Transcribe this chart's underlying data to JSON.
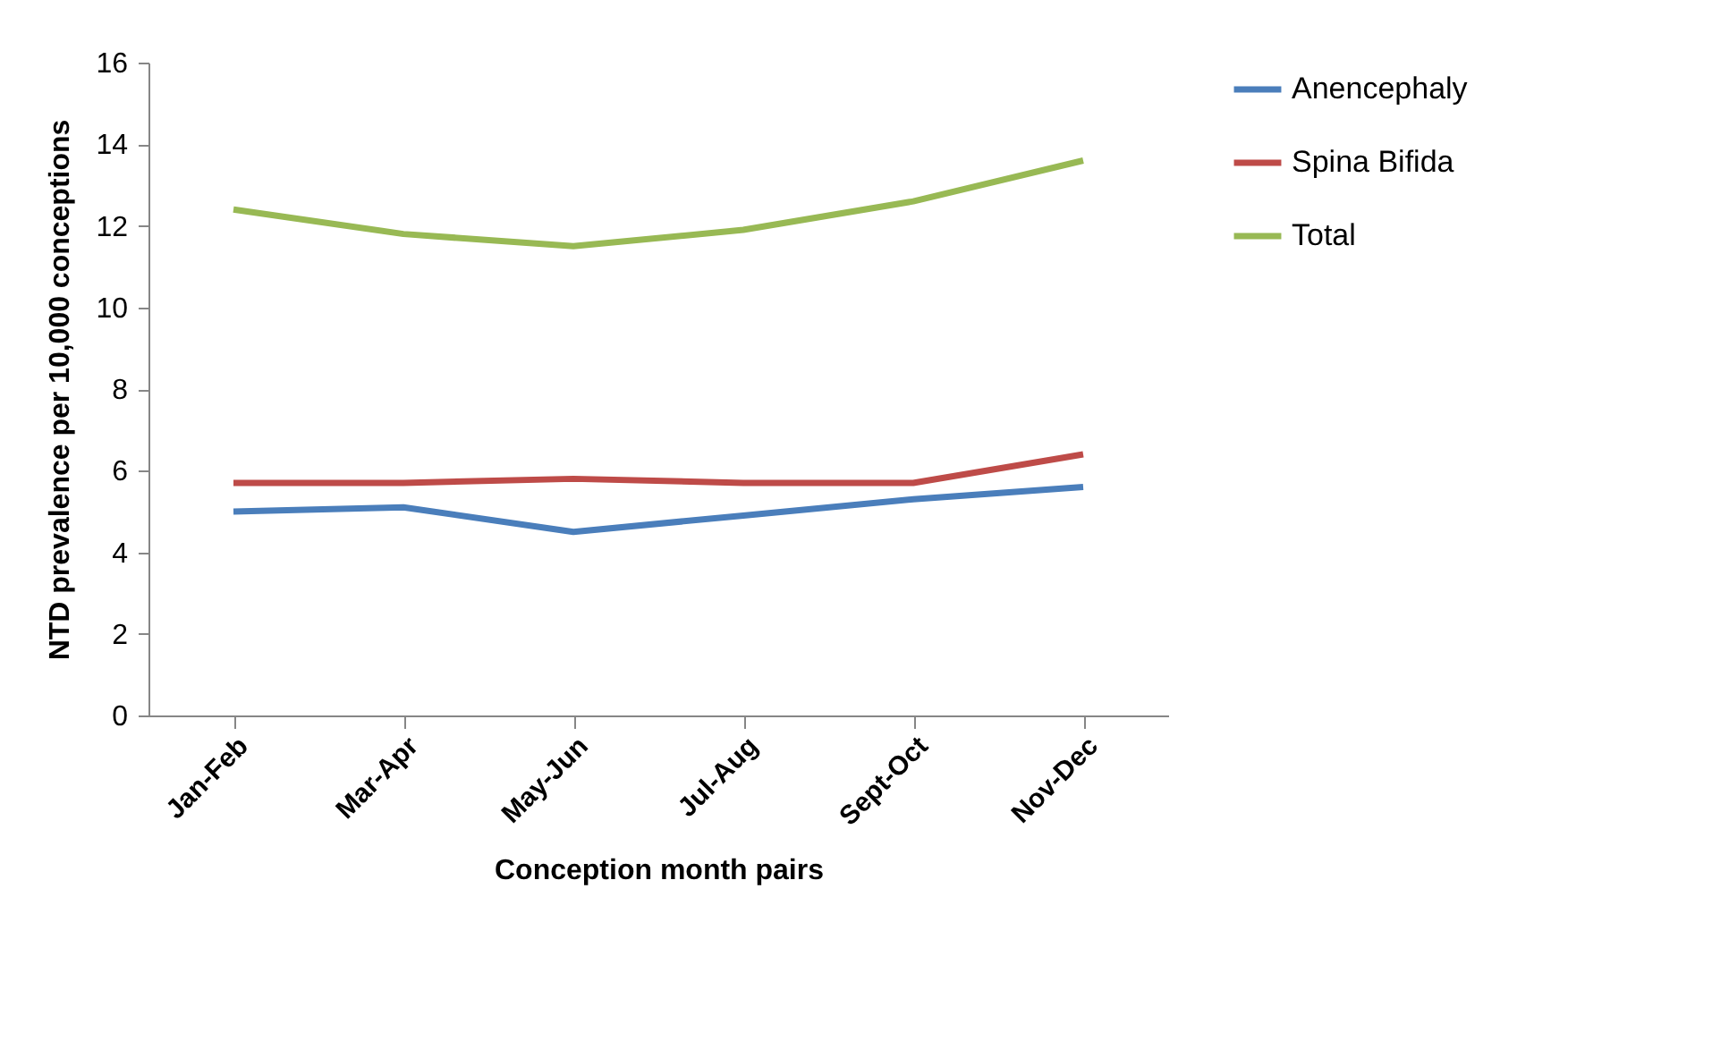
{
  "chart_data": {
    "type": "line",
    "xlabel": "Conception month pairs",
    "ylabel": "NTD prevalence per 10,000 conceptions",
    "categories": [
      "Jan-Feb",
      "Mar-Apr",
      "May-Jun",
      "Jul-Aug",
      "Sept-Oct",
      "Nov-Dec"
    ],
    "series": [
      {
        "name": "Anencephaly",
        "color": "#4a7ebb",
        "values": [
          5.0,
          5.1,
          4.5,
          4.9,
          5.3,
          5.6
        ]
      },
      {
        "name": "Spina Bifida",
        "color": "#be4b48",
        "values": [
          5.7,
          5.7,
          5.8,
          5.7,
          5.7,
          6.4
        ]
      },
      {
        "name": "Total",
        "color": "#98b954",
        "values": [
          12.4,
          11.8,
          11.5,
          11.9,
          12.6,
          13.6
        ]
      }
    ],
    "ylim": [
      0,
      16
    ],
    "yticks": [
      0,
      2,
      4,
      6,
      8,
      10,
      12,
      14,
      16
    ],
    "legend": "right",
    "grid": false,
    "marker": "none",
    "line_style": "solid"
  }
}
